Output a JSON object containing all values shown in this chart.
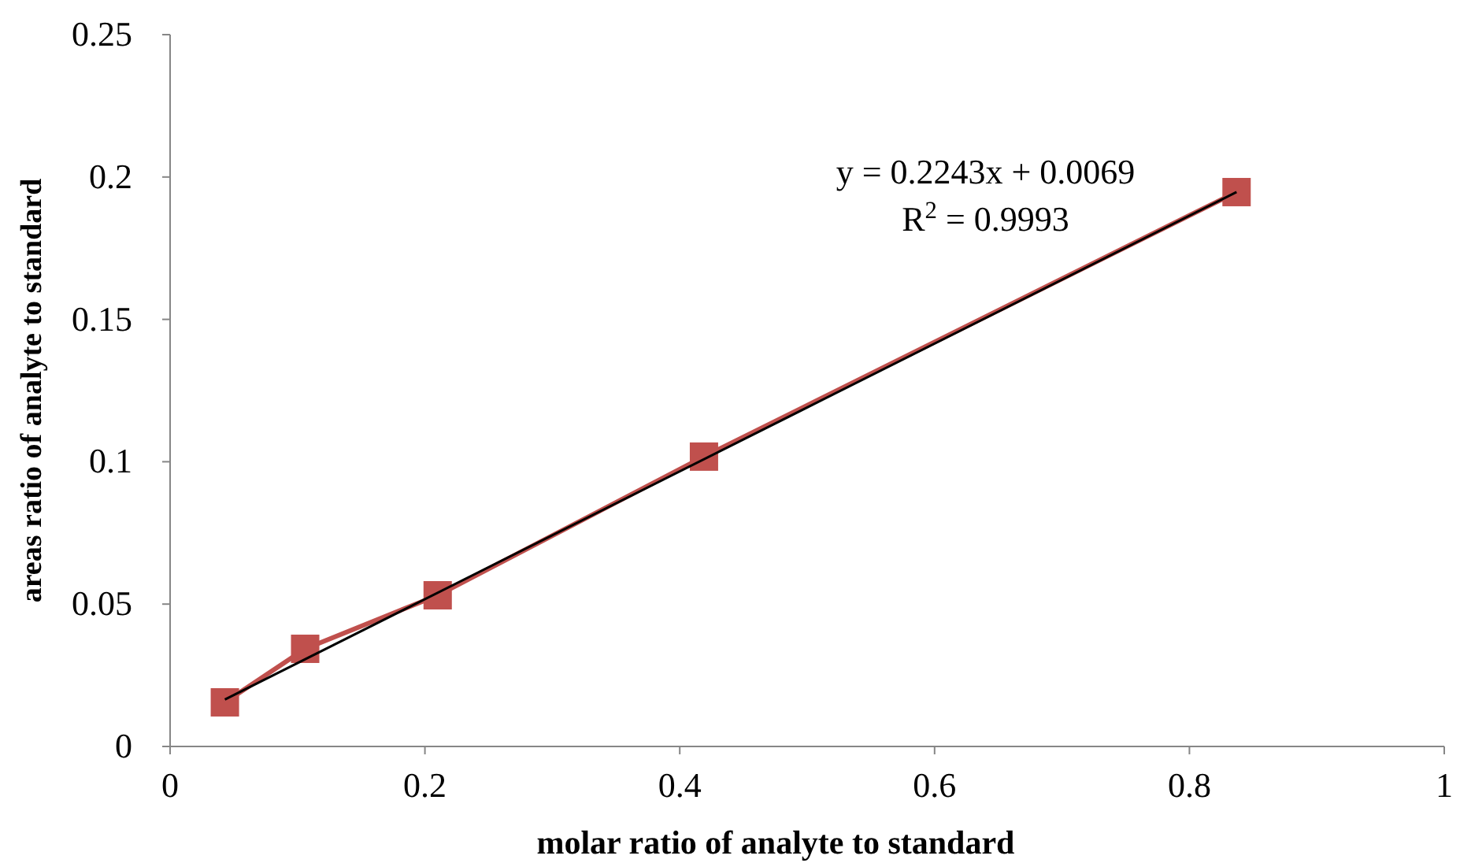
{
  "chart_data": {
    "type": "line",
    "xlabel": "molar ratio of analyte to standard",
    "ylabel": "areas ratio of analyte to standard",
    "xlim": [
      0,
      1
    ],
    "xticks": [
      0,
      0.2,
      0.4,
      0.6,
      0.8,
      1
    ],
    "ylim": [
      0,
      0.25
    ],
    "yticks": [
      0,
      0.05,
      0.1,
      0.15,
      0.2,
      0.25
    ],
    "grid": false,
    "annotations": [
      "y = 0.2243x + 0.0069",
      "R$^{2}$ = 0.9993"
    ],
    "series": [
      {
        "marker": "square",
        "color": "#c0504d",
        "x": [
          0.043,
          0.106,
          0.21,
          0.419,
          0.837
        ],
        "values": [
          0.0155,
          0.0343,
          0.0531,
          0.1018,
          0.1947
        ]
      },
      {
        "marker": "none",
        "color": "#000000",
        "x": [
          0.043,
          0.837
        ],
        "values": [
          0.0165,
          0.1947
        ]
      }
    ]
  }
}
